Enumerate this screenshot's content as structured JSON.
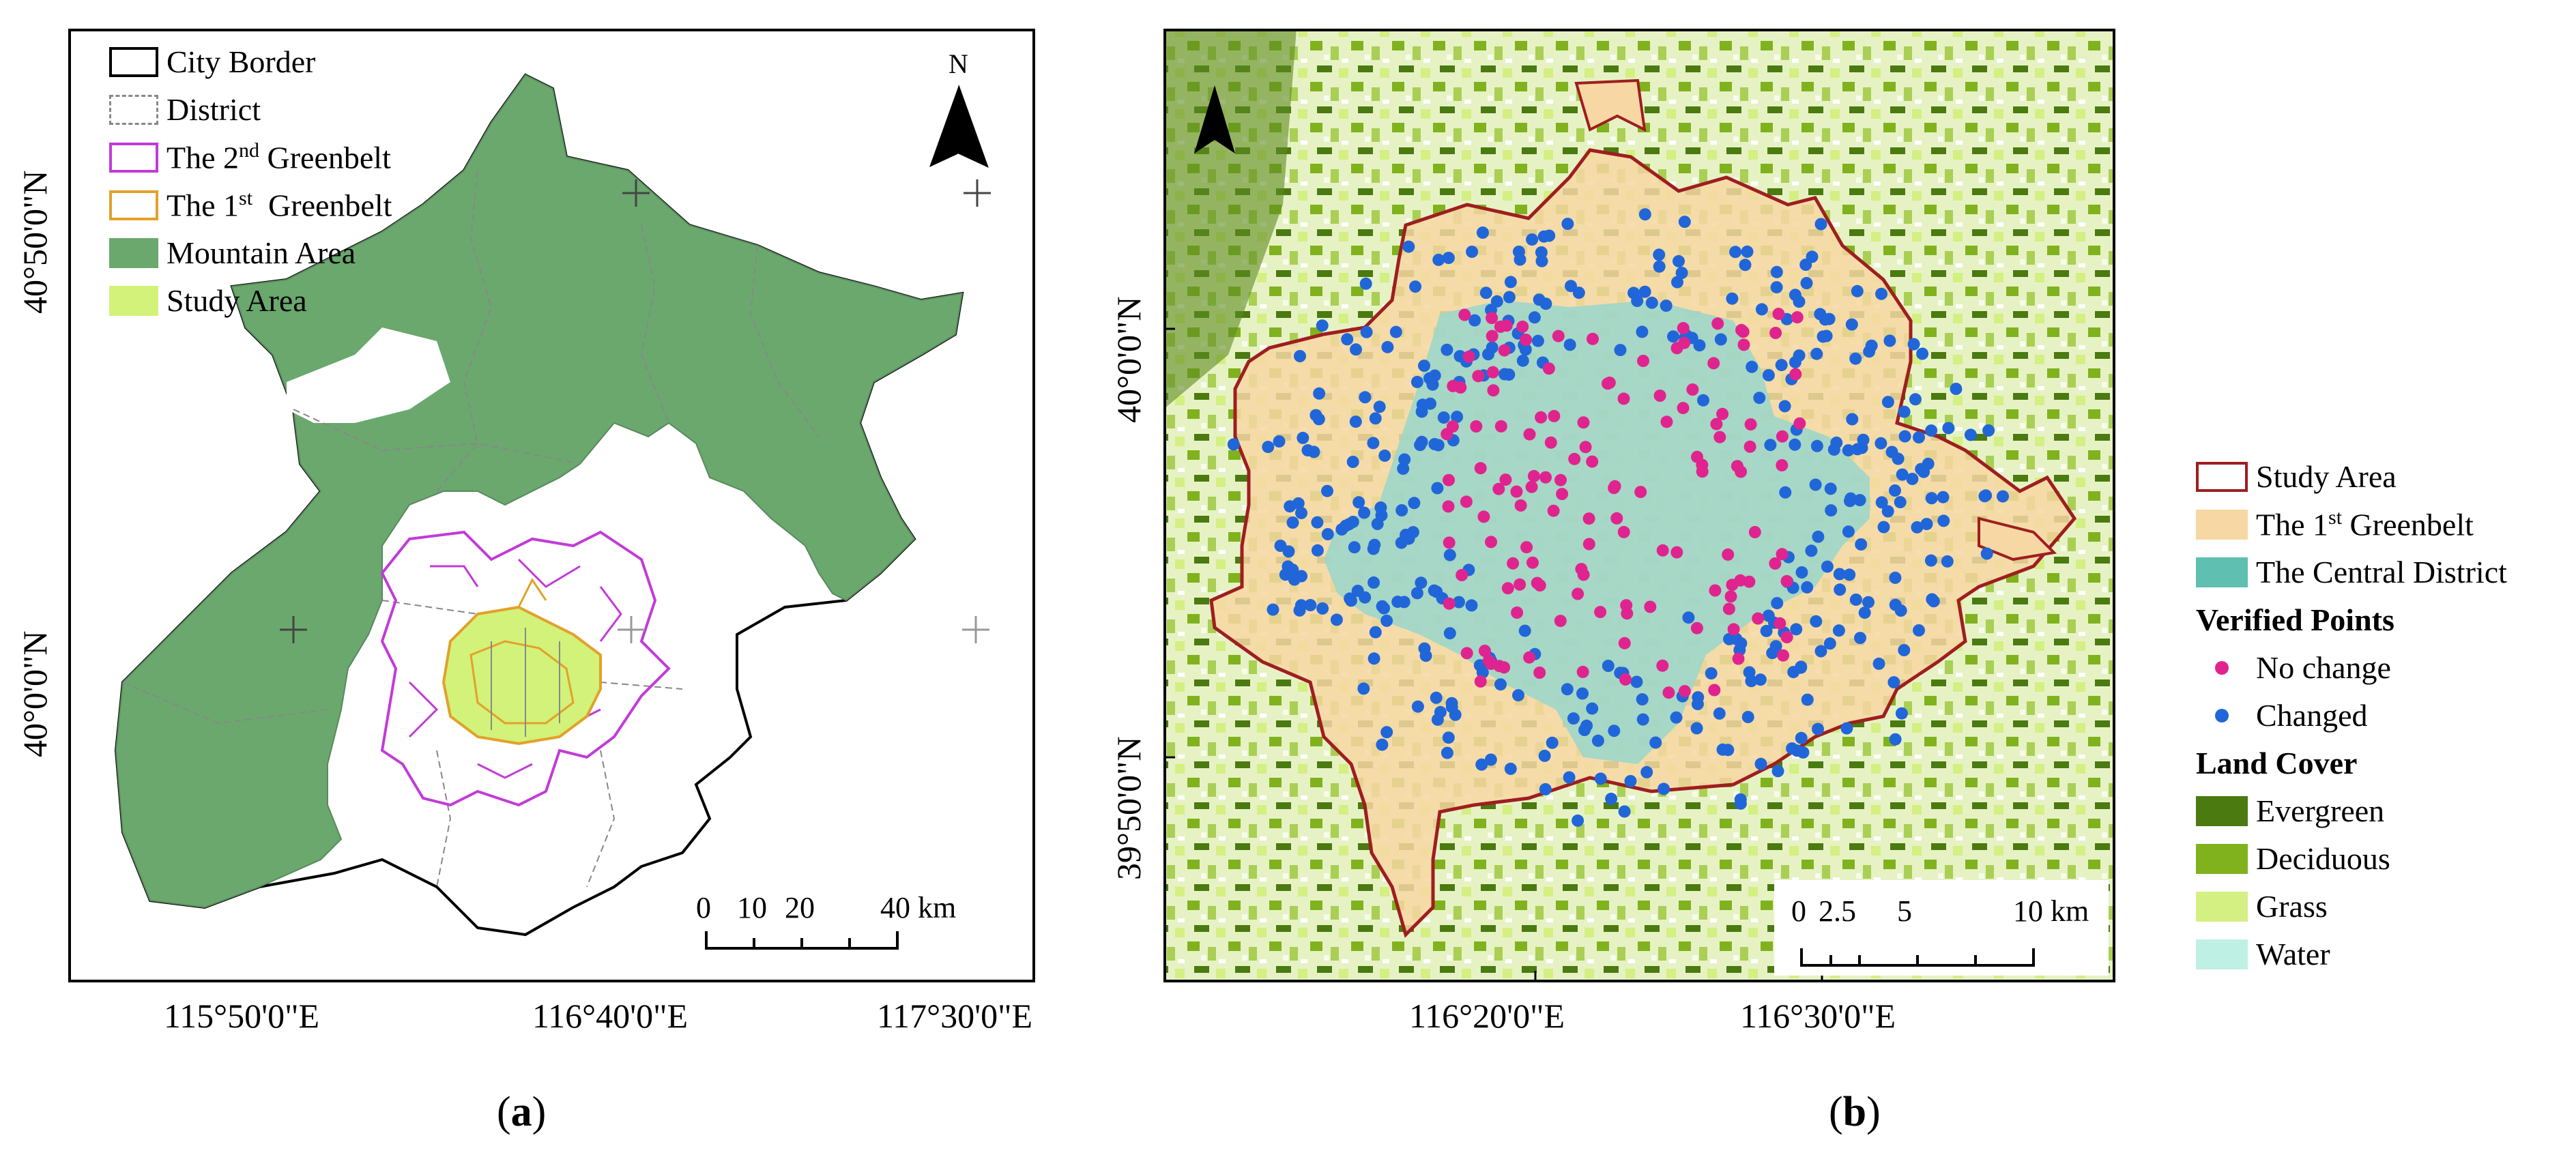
{
  "panel_a": {
    "legend": [
      {
        "label": "City Border"
      },
      {
        "label": "District"
      },
      {
        "label_pre": "The 2",
        "label_sup": "nd",
        "label_post": " Greenbelt"
      },
      {
        "label_pre": "The 1",
        "label_sup": "st",
        "label_post": "  Greenbelt"
      },
      {
        "label": "Mountain Area"
      },
      {
        "label": "Study Area"
      }
    ],
    "north": "N",
    "lat_labels": [
      "40°50'0\"N",
      "40°0'0\"N"
    ],
    "lon_labels": [
      "115°50'0\"E",
      "116°40'0\"E",
      "117°30'0\"E"
    ],
    "scale_labels": [
      "0",
      "10",
      "20",
      "40 km"
    ],
    "caption": "a"
  },
  "panel_b": {
    "lat_labels": [
      "40°0'0\"N",
      "39°50'0\"N"
    ],
    "lon_labels": [
      "116°20'0\"E",
      "116°30'0\"E"
    ],
    "scale_labels": [
      "0",
      "2.5",
      "5",
      "10 km"
    ],
    "caption": "b"
  },
  "legend_b": {
    "items": [
      {
        "label": "Study Area"
      },
      {
        "label_pre": "The 1",
        "label_sup": "st",
        "label_post": " Greenbelt"
      },
      {
        "label": "The Central District"
      }
    ],
    "verified_title": "Verified Points",
    "verified": [
      {
        "label": "No change",
        "color": "#e0248f"
      },
      {
        "label": "Changed",
        "color": "#2166d9"
      }
    ],
    "landcover_title": "Land Cover",
    "landcover": [
      {
        "label": "Evergreen",
        "color": "#4a7a10"
      },
      {
        "label": "Deciduous",
        "color": "#80b21e"
      },
      {
        "label": "Grass",
        "color": "#d4ef82"
      },
      {
        "label": "Water",
        "color": "#bff0e4"
      }
    ]
  },
  "colors": {
    "mountain": "#6aa86e",
    "study_area_fill": "#d2f27a",
    "greenbelt2": "#c23bd8",
    "greenbelt1": "#e3a12a",
    "study_border": "#9e1e20",
    "greenbelt_fill": "#f7d7a3",
    "central_fill": "#9fd6c9"
  }
}
